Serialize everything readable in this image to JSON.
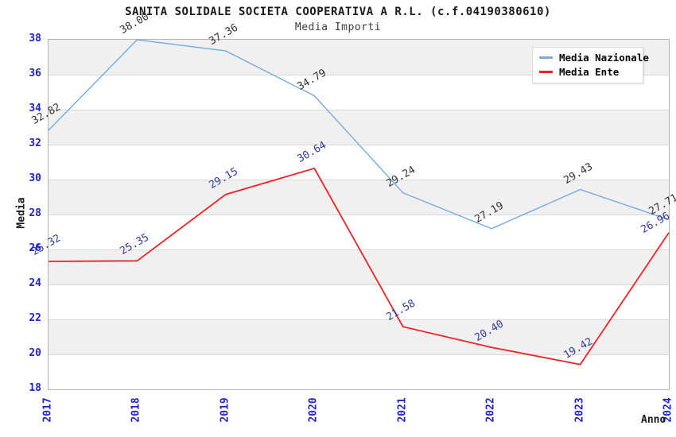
{
  "chart": {
    "title": "SANITA SOLIDALE SOCIETA COOPERATIVA A R.L. (c.f.04190380610)",
    "subtitle": "Media Importi"
  },
  "chart_data": {
    "type": "line",
    "x": [
      2017,
      2018,
      2019,
      2020,
      2021,
      2022,
      2023,
      2024
    ],
    "xlabel": "Anno",
    "ylabel": "Media",
    "ylim": [
      18,
      38
    ],
    "ytick_step": 2,
    "grid": "horizontal gridlines every 2 units with alternating gray bands",
    "legend_position": "top-right",
    "series": [
      {
        "name": "Media Nazionale",
        "color": "#74abe2",
        "label_color": "#333333",
        "values": [
          32.82,
          38.0,
          37.36,
          34.79,
          29.24,
          27.19,
          29.43,
          27.71
        ],
        "labels": [
          "32.82",
          "38.00",
          "37.36",
          "34.79",
          "29.24",
          "27.19",
          "29.43",
          "27.71"
        ]
      },
      {
        "name": "Media Ente",
        "color": "#ee2222",
        "label_color": "#333a99",
        "values": [
          25.32,
          25.35,
          29.15,
          30.64,
          21.58,
          20.4,
          19.42,
          26.96
        ],
        "labels": [
          "25.32",
          "25.35",
          "29.15",
          "30.64",
          "21.58",
          "20.40",
          "19.42",
          "26.96"
        ]
      }
    ],
    "colors": {
      "tick_label": "#2121cc",
      "band": "#f0f0f0",
      "gridline": "#d8d8d8",
      "plot_border": "#b3b3b3",
      "background": "#ffffff"
    }
  }
}
